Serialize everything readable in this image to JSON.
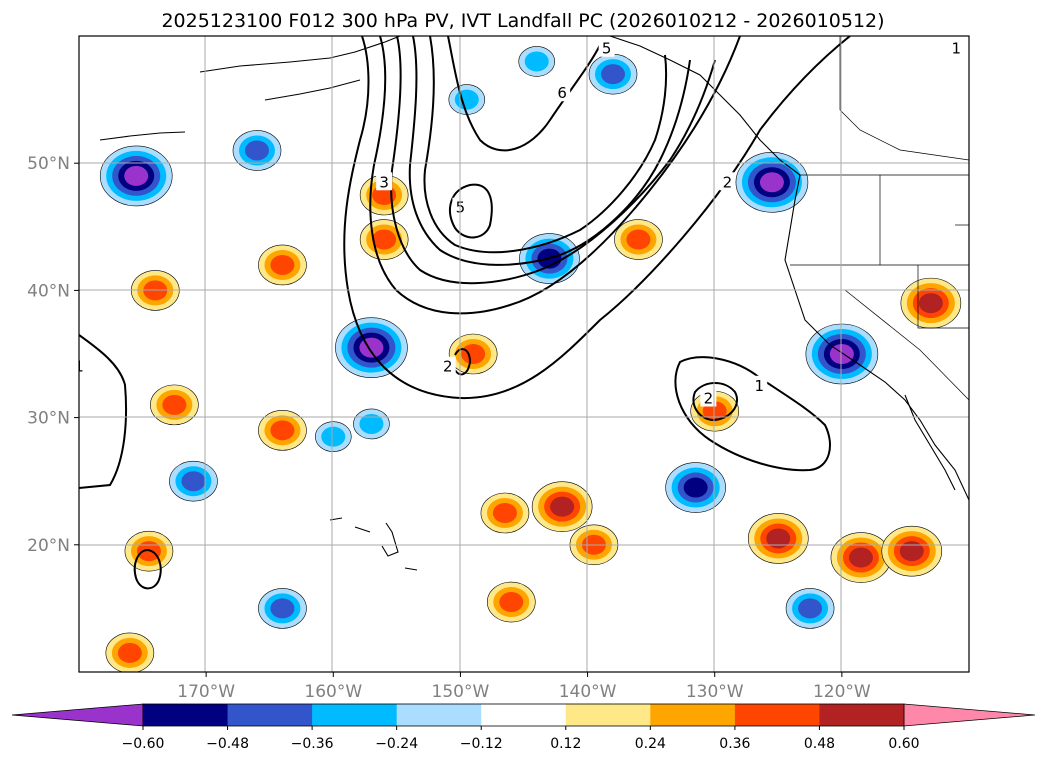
{
  "chart_data": {
    "type": "contour-map",
    "title": "2025123100 F012 300 hPa PV, IVT Landfall PC (2026010212 - 2026010512)",
    "xlim": [
      -180,
      -110
    ],
    "ylim": [
      10,
      60
    ],
    "lon_ticks": [
      -170,
      -160,
      -150,
      -140,
      -130,
      -120
    ],
    "lon_tick_labels": [
      "170°W",
      "160°W",
      "150°W",
      "140°W",
      "130°W",
      "120°W"
    ],
    "lat_ticks": [
      20,
      30,
      40,
      50
    ],
    "lat_tick_labels": [
      "20°N",
      "30°N",
      "40°N",
      "50°N"
    ],
    "grid": true,
    "colorbar": {
      "orientation": "horizontal",
      "extend": "both",
      "boundaries": [
        -0.72,
        -0.6,
        -0.48,
        -0.36,
        -0.24,
        -0.12,
        0.12,
        0.24,
        0.36,
        0.48,
        0.6,
        0.72
      ],
      "colors": [
        "#9933cc",
        "#000080",
        "#3355cc",
        "#00bbff",
        "#aaddff",
        "#ffffff",
        "#ffe888",
        "#ffa500",
        "#ff4500",
        "#b22222",
        "#ff88aa"
      ],
      "tick_values": [
        -0.6,
        -0.48,
        -0.36,
        -0.24,
        -0.12,
        0.12,
        0.24,
        0.36,
        0.48,
        0.6
      ],
      "tick_labels": [
        "−0.60",
        "−0.48",
        "−0.36",
        "−0.24",
        "−0.12",
        "0.12",
        "0.24",
        "0.36",
        "0.48",
        "0.60"
      ]
    },
    "pv_contour_levels": [
      1,
      2,
      3,
      4,
      5,
      6
    ],
    "contour_labels": [
      {
        "text": "1",
        "lon": -180,
        "lat": 34
      },
      {
        "text": "1",
        "lon": -126.5,
        "lat": 32.5
      },
      {
        "text": "2",
        "lon": -130.5,
        "lat": 31.5
      },
      {
        "text": "2",
        "lon": -129,
        "lat": 48.5
      },
      {
        "text": "2",
        "lon": -151,
        "lat": 34
      },
      {
        "text": "3",
        "lon": -156,
        "lat": 48.5
      },
      {
        "text": "5",
        "lon": -150,
        "lat": 46.5
      },
      {
        "text": "6",
        "lon": -142,
        "lat": 55.5
      },
      {
        "text": "5",
        "lon": -138.5,
        "lat": 59
      },
      {
        "text": "1",
        "lon": -111,
        "lat": 59
      }
    ],
    "anomaly_blobs": [
      {
        "lon": -175.5,
        "lat": 49,
        "value": -0.6
      },
      {
        "lon": -166,
        "lat": 51,
        "value": -0.36
      },
      {
        "lon": -164,
        "lat": 42,
        "value": 0.36
      },
      {
        "lon": -156,
        "lat": 47.5,
        "value": 0.36
      },
      {
        "lon": -156,
        "lat": 44,
        "value": 0.36
      },
      {
        "lon": -157,
        "lat": 35.5,
        "value": -0.6
      },
      {
        "lon": -149,
        "lat": 35,
        "value": 0.36
      },
      {
        "lon": -143,
        "lat": 42.5,
        "value": -0.48
      },
      {
        "lon": -144,
        "lat": 58,
        "value": -0.24
      },
      {
        "lon": -138,
        "lat": 57,
        "value": -0.36
      },
      {
        "lon": -136,
        "lat": 44,
        "value": 0.36
      },
      {
        "lon": -125.5,
        "lat": 48.5,
        "value": -0.6
      },
      {
        "lon": -120,
        "lat": 35,
        "value": -0.6
      },
      {
        "lon": -113,
        "lat": 39,
        "value": 0.48
      },
      {
        "lon": -130,
        "lat": 30.5,
        "value": 0.36
      },
      {
        "lon": -131.5,
        "lat": 24.5,
        "value": -0.48
      },
      {
        "lon": -125,
        "lat": 20.5,
        "value": 0.48
      },
      {
        "lon": -118.5,
        "lat": 19,
        "value": 0.48
      },
      {
        "lon": -114.5,
        "lat": 19.5,
        "value": 0.48
      },
      {
        "lon": -122.5,
        "lat": 15,
        "value": -0.36
      },
      {
        "lon": -142,
        "lat": 23,
        "value": 0.48
      },
      {
        "lon": -146,
        "lat": 15.5,
        "value": 0.36
      },
      {
        "lon": -164,
        "lat": 15,
        "value": -0.36
      },
      {
        "lon": -176,
        "lat": 11.5,
        "value": 0.36
      },
      {
        "lon": -171,
        "lat": 25,
        "value": -0.36
      },
      {
        "lon": -174.5,
        "lat": 19.5,
        "value": 0.36
      },
      {
        "lon": -164,
        "lat": 29,
        "value": 0.36
      },
      {
        "lon": -174,
        "lat": 40,
        "value": 0.36
      },
      {
        "lon": -157,
        "lat": 29.5,
        "value": -0.24
      },
      {
        "lon": -160,
        "lat": 28.5,
        "value": -0.24
      },
      {
        "lon": -146.5,
        "lat": 22.5,
        "value": 0.36
      },
      {
        "lon": -139.5,
        "lat": 20,
        "value": 0.36
      },
      {
        "lon": -149.5,
        "lat": 55,
        "value": -0.24
      },
      {
        "lon": -172.5,
        "lat": 31,
        "value": 0.36
      }
    ]
  }
}
